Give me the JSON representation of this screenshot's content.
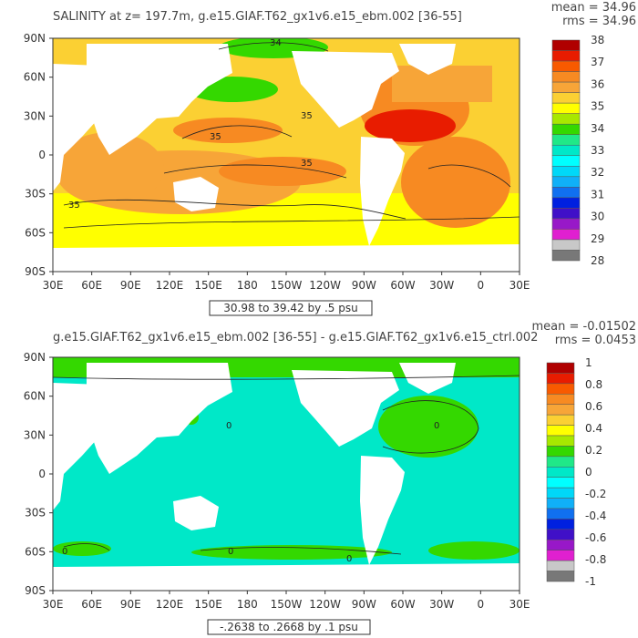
{
  "chart_data": [
    {
      "type": "heatmap",
      "title": "SALINITY at z= 197.7m, g.e15.GIAF.T62_gx1v6.e15_ebm.002 [36-55]",
      "mean_label": "mean = 34.96",
      "rms_label": "rms = 34.96",
      "range_label": "30.98 to 39.42 by .5 psu",
      "x_ticks": [
        "30E",
        "60E",
        "90E",
        "120E",
        "150E",
        "180",
        "150W",
        "120W",
        "90W",
        "60W",
        "30W",
        "0",
        "30E"
      ],
      "y_ticks": [
        "90N",
        "60N",
        "30N",
        "0",
        "30S",
        "60S",
        "90S"
      ],
      "colorbar_labels": [
        "38",
        "37",
        "36",
        "35",
        "34",
        "33",
        "32",
        "31",
        "30",
        "29",
        "28"
      ],
      "colorbar_colors": [
        "#b00000",
        "#e81c00",
        "#f85a00",
        "#f78a22",
        "#f7a538",
        "#fbd033",
        "#ffff00",
        "#a8e800",
        "#34d800",
        "#20e888",
        "#00e8c8",
        "#00ffff",
        "#00d8f8",
        "#10b0f8",
        "#1070f0",
        "#0020e0",
        "#4010c8",
        "#9818c8",
        "#e020d0",
        "#c8c8c8",
        "#787878"
      ],
      "contour_labels": [
        "34",
        "35",
        "35",
        "35",
        "35"
      ]
    },
    {
      "type": "heatmap",
      "title": "g.e15.GIAF.T62_gx1v6.e15_ebm.002 [36-55] - g.e15.GIAF.T62_gx1v6.e15_ctrl.002",
      "mean_label": "mean = -0.01502",
      "rms_label": "rms = 0.0453",
      "range_label": "-.2638 to .2668 by .1 psu",
      "x_ticks": [
        "30E",
        "60E",
        "90E",
        "120E",
        "150E",
        "180",
        "150W",
        "120W",
        "90W",
        "60W",
        "30W",
        "0",
        "30E"
      ],
      "y_ticks": [
        "90N",
        "60N",
        "30N",
        "0",
        "30S",
        "60S",
        "90S"
      ],
      "colorbar_labels": [
        "1",
        "0.8",
        "0.6",
        "0.4",
        "0.2",
        "0",
        "-0.2",
        "-0.4",
        "-0.6",
        "-0.8",
        "-1"
      ],
      "colorbar_colors": [
        "#b00000",
        "#e81c00",
        "#f85a00",
        "#f78a22",
        "#f7a538",
        "#fbd033",
        "#ffff00",
        "#a8e800",
        "#34d800",
        "#20e888",
        "#00e8c8",
        "#00ffff",
        "#00d8f8",
        "#10b0f8",
        "#1070f0",
        "#0020e0",
        "#4010c8",
        "#9818c8",
        "#e020d0",
        "#c8c8c8",
        "#787878"
      ],
      "contour_labels": [
        "0",
        "0",
        "0",
        "0",
        "0"
      ]
    }
  ]
}
